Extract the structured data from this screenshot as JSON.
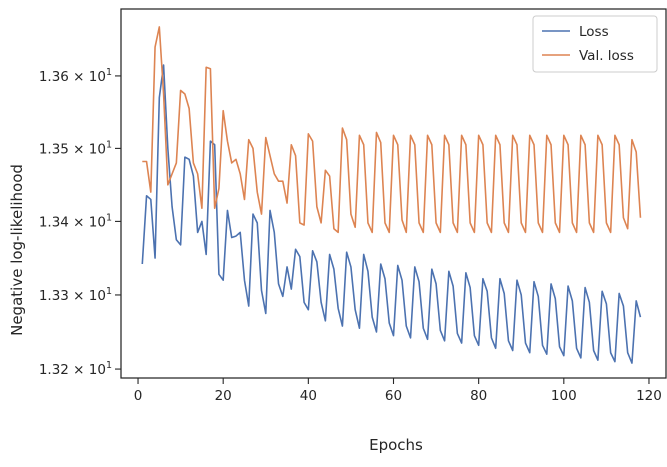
{
  "chart_data": {
    "type": "line",
    "title": "",
    "xlabel": "Epochs",
    "ylabel": "Negative log-likelihood",
    "xlim": [
      -4,
      124
    ],
    "ylim": [
      13.188,
      13.693
    ],
    "x_ticks": [
      0,
      20,
      40,
      60,
      80,
      100,
      120
    ],
    "y_ticks": [
      {
        "value": 13.2,
        "mantissa": "1.32",
        "exponent": "1"
      },
      {
        "value": 13.3,
        "mantissa": "1.33",
        "exponent": "1"
      },
      {
        "value": 13.4,
        "mantissa": "1.34",
        "exponent": "1"
      },
      {
        "value": 13.5,
        "mantissa": "1.35",
        "exponent": "1"
      },
      {
        "value": 13.6,
        "mantissa": "1.36",
        "exponent": "1"
      }
    ],
    "y_tick_base": "10",
    "y_scale": "log",
    "grid": false,
    "legend_position": "top-right",
    "series": [
      {
        "name": "Loss",
        "color": "#4c72b0",
        "x": [
          1,
          2,
          3,
          4,
          5,
          6,
          7,
          8,
          9,
          10,
          11,
          12,
          13,
          14,
          15,
          16,
          17,
          18,
          19,
          20,
          21,
          22,
          23,
          24,
          25,
          26,
          27,
          28,
          29,
          30,
          31,
          32,
          33,
          34,
          35,
          36,
          37,
          38,
          39,
          40,
          41,
          42,
          43,
          44,
          45,
          46,
          47,
          48,
          49,
          50,
          51,
          52,
          53,
          54,
          55,
          56,
          57,
          58,
          59,
          60,
          61,
          62,
          63,
          64,
          65,
          66,
          67,
          68,
          69,
          70,
          71,
          72,
          73,
          74,
          75,
          76,
          77,
          78,
          79,
          80,
          81,
          82,
          83,
          84,
          85,
          86,
          87,
          88,
          89,
          90,
          91,
          92,
          93,
          94,
          95,
          96,
          97,
          98,
          99,
          100,
          101,
          102,
          103,
          104,
          105,
          106,
          107,
          108,
          109,
          110,
          111,
          112,
          113,
          114,
          115,
          116,
          117,
          118
        ],
        "values": [
          13.342,
          13.435,
          13.43,
          13.35,
          13.57,
          13.615,
          13.5,
          13.42,
          13.375,
          13.368,
          13.488,
          13.485,
          13.462,
          13.385,
          13.4,
          13.355,
          13.51,
          13.505,
          13.328,
          13.32,
          13.415,
          13.378,
          13.38,
          13.385,
          13.32,
          13.285,
          13.41,
          13.398,
          13.306,
          13.275,
          13.415,
          13.385,
          13.315,
          13.298,
          13.338,
          13.308,
          13.362,
          13.352,
          13.29,
          13.28,
          13.36,
          13.345,
          13.29,
          13.265,
          13.355,
          13.335,
          13.282,
          13.258,
          13.358,
          13.338,
          13.28,
          13.255,
          13.355,
          13.332,
          13.27,
          13.25,
          13.342,
          13.322,
          13.262,
          13.245,
          13.34,
          13.32,
          13.258,
          13.242,
          13.338,
          13.318,
          13.255,
          13.24,
          13.335,
          13.315,
          13.252,
          13.238,
          13.332,
          13.312,
          13.248,
          13.235,
          13.33,
          13.31,
          13.245,
          13.232,
          13.322,
          13.305,
          13.242,
          13.228,
          13.322,
          13.302,
          13.238,
          13.225,
          13.32,
          13.3,
          13.235,
          13.222,
          13.318,
          13.298,
          13.232,
          13.22,
          13.315,
          13.295,
          13.23,
          13.218,
          13.312,
          13.292,
          13.228,
          13.215,
          13.31,
          13.29,
          13.225,
          13.212,
          13.305,
          13.288,
          13.222,
          13.21,
          13.302,
          13.285,
          13.222,
          13.208,
          13.292,
          13.27
        ]
      },
      {
        "name": "Val. loss",
        "color": "#dd8452",
        "x": [
          1,
          2,
          3,
          4,
          5,
          6,
          7,
          8,
          9,
          10,
          11,
          12,
          13,
          14,
          15,
          16,
          17,
          18,
          19,
          20,
          21,
          22,
          23,
          24,
          25,
          26,
          27,
          28,
          29,
          30,
          31,
          32,
          33,
          34,
          35,
          36,
          37,
          38,
          39,
          40,
          41,
          42,
          43,
          44,
          45,
          46,
          47,
          48,
          49,
          50,
          51,
          52,
          53,
          54,
          55,
          56,
          57,
          58,
          59,
          60,
          61,
          62,
          63,
          64,
          65,
          66,
          67,
          68,
          69,
          70,
          71,
          72,
          73,
          74,
          75,
          76,
          77,
          78,
          79,
          80,
          81,
          82,
          83,
          84,
          85,
          86,
          87,
          88,
          89,
          90,
          91,
          92,
          93,
          94,
          95,
          96,
          97,
          98,
          99,
          100,
          101,
          102,
          103,
          104,
          105,
          106,
          107,
          108,
          109,
          110,
          111,
          112,
          113,
          114,
          115,
          116,
          117,
          118
        ],
        "values": [
          13.482,
          13.482,
          13.44,
          13.64,
          13.668,
          13.575,
          13.45,
          13.465,
          13.48,
          13.58,
          13.575,
          13.555,
          13.48,
          13.465,
          13.418,
          13.612,
          13.61,
          13.418,
          13.445,
          13.552,
          13.51,
          13.48,
          13.485,
          13.465,
          13.43,
          13.512,
          13.5,
          13.44,
          13.41,
          13.515,
          13.49,
          13.465,
          13.455,
          13.455,
          13.425,
          13.505,
          13.49,
          13.398,
          13.395,
          13.52,
          13.51,
          13.42,
          13.398,
          13.47,
          13.462,
          13.39,
          13.385,
          13.528,
          13.512,
          13.41,
          13.392,
          13.518,
          13.505,
          13.398,
          13.385,
          13.522,
          13.508,
          13.398,
          13.385,
          13.518,
          13.505,
          13.402,
          13.385,
          13.518,
          13.505,
          13.398,
          13.385,
          13.518,
          13.505,
          13.398,
          13.385,
          13.518,
          13.505,
          13.398,
          13.385,
          13.518,
          13.505,
          13.398,
          13.385,
          13.518,
          13.505,
          13.398,
          13.385,
          13.518,
          13.505,
          13.398,
          13.385,
          13.518,
          13.505,
          13.398,
          13.385,
          13.518,
          13.505,
          13.398,
          13.385,
          13.518,
          13.505,
          13.398,
          13.385,
          13.518,
          13.505,
          13.398,
          13.385,
          13.518,
          13.505,
          13.398,
          13.385,
          13.518,
          13.505,
          13.398,
          13.385,
          13.518,
          13.505,
          13.405,
          13.39,
          13.512,
          13.495,
          13.405
        ]
      }
    ]
  }
}
